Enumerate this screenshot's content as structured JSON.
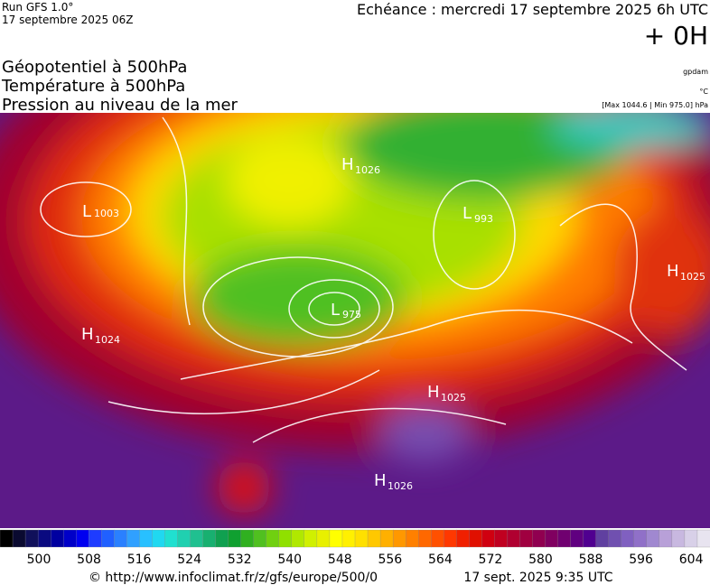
{
  "header": {
    "run": "Run GFS 1.0°",
    "run_date": "17 septembre 2025 06Z",
    "echeance": "Echéance : mercredi 17 septembre 2025 6h UTC",
    "offset": "+ 0H"
  },
  "titles": [
    "Géopotentiel à 500hPa",
    "Température à 500hPa",
    "Pression au niveau de la mer"
  ],
  "units": {
    "geopotential": "gpdam",
    "temperature": "°C",
    "pressure": "[Max 1044.6 | Min 975.0] hPa"
  },
  "centers": [
    {
      "kind": "L",
      "value": "1003"
    },
    {
      "kind": "H",
      "value": "1024"
    },
    {
      "kind": "H",
      "value": "1026"
    },
    {
      "kind": "L",
      "value": "993"
    },
    {
      "kind": "L",
      "value": "975"
    },
    {
      "kind": "H",
      "value": "1025"
    },
    {
      "kind": "H",
      "value": "1025"
    },
    {
      "kind": "H",
      "value": "1026"
    }
  ],
  "scale": {
    "labels": [
      "500",
      "508",
      "516",
      "524",
      "532",
      "540",
      "548",
      "556",
      "564",
      "572",
      "580",
      "588",
      "596",
      "604"
    ],
    "colors": [
      "#000000",
      "#0a0a30",
      "#10105a",
      "#0a0a80",
      "#0000a0",
      "#0000c8",
      "#0000f0",
      "#1e3cff",
      "#2060ff",
      "#2a80ff",
      "#30a0ff",
      "#28c0ff",
      "#20d8f0",
      "#20e0d0",
      "#20d0b0",
      "#20c090",
      "#18b070",
      "#10a050",
      "#10a030",
      "#30b020",
      "#50c020",
      "#70d010",
      "#90e000",
      "#b0e800",
      "#d0f000",
      "#e8f000",
      "#ffff00",
      "#fff000",
      "#ffe000",
      "#ffc800",
      "#ffb000",
      "#ff9800",
      "#ff8000",
      "#ff6800",
      "#ff5000",
      "#ff3800",
      "#f02000",
      "#e01000",
      "#d00010",
      "#c00020",
      "#b00030",
      "#a00040",
      "#900050",
      "#800060",
      "#700070",
      "#600080",
      "#500090",
      "#6040a0",
      "#7050b0",
      "#8060c0",
      "#9070c8",
      "#a088d0",
      "#b8a0d8",
      "#c8b8e0",
      "#d8d0e8",
      "#e8e4f0"
    ]
  },
  "footer": {
    "url": "© http://www.infoclimat.fr/z/gfs/europe/500/0",
    "time": "17 sept. 2025  9:35 UTC"
  }
}
